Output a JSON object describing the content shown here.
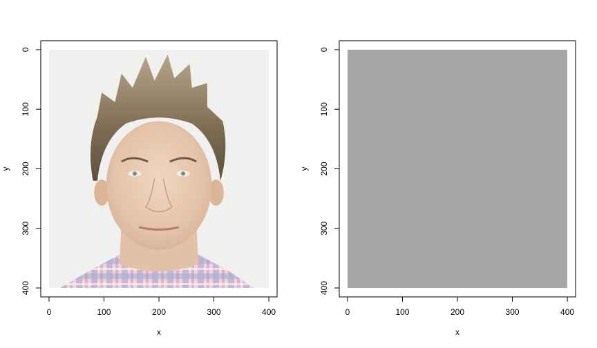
{
  "chart_data": [
    {
      "type": "image",
      "xlabel": "x",
      "ylabel": "y",
      "xlim": [
        -15,
        415
      ],
      "ylim": [
        415,
        -15
      ],
      "x_ticks": [
        0,
        100,
        200,
        300,
        400
      ],
      "y_ticks": [
        0,
        100,
        200,
        300,
        400
      ],
      "y_reversed": true,
      "image_extent": {
        "x": [
          0,
          400
        ],
        "y": [
          0,
          400
        ]
      },
      "content": "portrait-photo",
      "colors": {
        "background": "#f0f0ef",
        "skin": "#e9cdb5",
        "hair": "#7a6a52",
        "shirt": "#c9a8c8"
      }
    },
    {
      "type": "image",
      "xlabel": "x",
      "ylabel": "y",
      "xlim": [
        -15,
        415
      ],
      "ylim": [
        415,
        -15
      ],
      "x_ticks": [
        0,
        100,
        200,
        300,
        400
      ],
      "y_ticks": [
        0,
        100,
        200,
        300,
        400
      ],
      "y_reversed": true,
      "image_extent": {
        "x": [
          0,
          400
        ],
        "y": [
          0,
          400
        ]
      },
      "content": "uniform-gray",
      "colors": {
        "fill": "#a6a6a6"
      }
    }
  ]
}
